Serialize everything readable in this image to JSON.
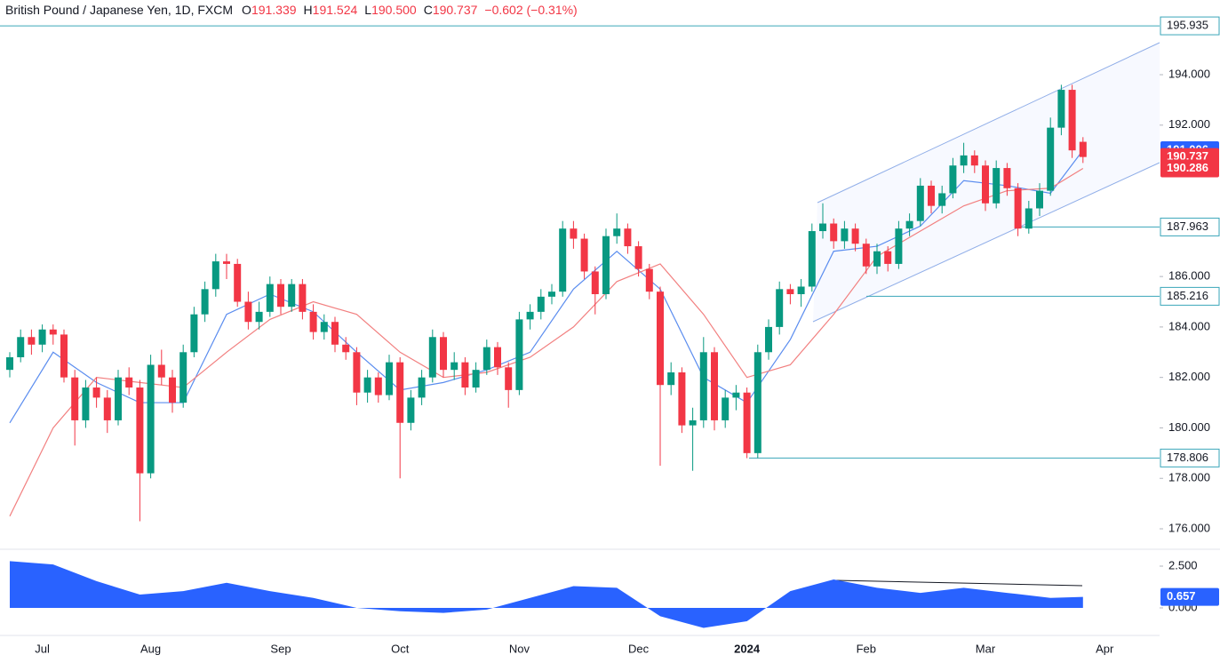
{
  "header": {
    "symbol": "British Pound / Japanese Yen, 1D, FXCM",
    "fields": [
      {
        "key": "O",
        "value": "191.339"
      },
      {
        "key": "H",
        "value": "191.524"
      },
      {
        "key": "L",
        "value": "190.500"
      },
      {
        "key": "C",
        "value": "190.737"
      }
    ],
    "change": "−0.602 (−0.31%)"
  },
  "chart_data": {
    "type": "candlestick",
    "up_color": "#089981",
    "down_color": "#f23645",
    "categories": [
      null,
      null,
      null,
      "Jul",
      null,
      null,
      null,
      null,
      null,
      null,
      null,
      null,
      null,
      "Aug",
      null,
      null,
      null,
      null,
      null,
      null,
      null,
      null,
      null,
      null,
      null,
      "Sep",
      null,
      null,
      null,
      null,
      null,
      null,
      null,
      null,
      null,
      null,
      "Oct",
      null,
      null,
      null,
      null,
      null,
      null,
      null,
      null,
      null,
      null,
      "Nov",
      null,
      null,
      null,
      null,
      null,
      null,
      null,
      null,
      null,
      null,
      "Dec",
      null,
      null,
      null,
      null,
      null,
      null,
      null,
      null,
      null,
      "2024",
      null,
      null,
      null,
      null,
      null,
      null,
      null,
      null,
      null,
      null,
      "Feb",
      null,
      null,
      null,
      null,
      null,
      null,
      null,
      null,
      null,
      null,
      "Mar",
      null,
      null,
      null,
      null,
      null,
      null,
      null,
      null,
      null,
      null,
      "Apr"
    ],
    "ohlc": [
      [
        182.3,
        183.0,
        182.0,
        182.8
      ],
      [
        182.8,
        183.9,
        182.6,
        183.6
      ],
      [
        183.6,
        183.9,
        182.9,
        183.3
      ],
      [
        183.3,
        184.1,
        183.0,
        183.9
      ],
      [
        183.9,
        184.1,
        183.3,
        183.7
      ],
      [
        183.7,
        183.9,
        181.8,
        182.0
      ],
      [
        182.0,
        182.3,
        179.3,
        180.3
      ],
      [
        180.3,
        181.9,
        180.0,
        181.6
      ],
      [
        181.6,
        182.0,
        180.8,
        181.2
      ],
      [
        181.2,
        181.5,
        179.8,
        180.3
      ],
      [
        180.3,
        182.3,
        180.1,
        182.0
      ],
      [
        182.0,
        182.4,
        181.3,
        181.6
      ],
      [
        181.6,
        181.9,
        176.3,
        178.2
      ],
      [
        178.2,
        182.9,
        178.0,
        182.5
      ],
      [
        182.5,
        183.1,
        181.7,
        182.0
      ],
      [
        182.0,
        182.3,
        180.6,
        181.0
      ],
      [
        181.0,
        183.3,
        180.8,
        183.0
      ],
      [
        183.0,
        184.8,
        182.8,
        184.5
      ],
      [
        184.5,
        185.8,
        184.2,
        185.5
      ],
      [
        185.5,
        186.9,
        185.2,
        186.6
      ],
      [
        186.6,
        186.9,
        185.9,
        186.5
      ],
      [
        186.5,
        186.7,
        184.8,
        185.0
      ],
      [
        185.0,
        185.4,
        183.9,
        184.2
      ],
      [
        184.2,
        185.0,
        183.9,
        184.6
      ],
      [
        184.6,
        186.0,
        184.4,
        185.7
      ],
      [
        185.7,
        185.9,
        184.5,
        184.8
      ],
      [
        184.8,
        185.9,
        184.6,
        185.7
      ],
      [
        185.7,
        185.9,
        184.3,
        184.6
      ],
      [
        184.6,
        184.9,
        183.5,
        183.8
      ],
      [
        183.8,
        184.5,
        183.5,
        184.2
      ],
      [
        184.2,
        184.4,
        183.0,
        183.3
      ],
      [
        183.3,
        183.6,
        182.7,
        183.0
      ],
      [
        183.0,
        183.2,
        180.9,
        181.4
      ],
      [
        181.4,
        182.3,
        181.0,
        182.0
      ],
      [
        182.0,
        182.2,
        181.0,
        181.3
      ],
      [
        181.3,
        182.9,
        181.1,
        182.6
      ],
      [
        182.6,
        182.8,
        178.0,
        180.2
      ],
      [
        180.2,
        181.5,
        179.9,
        181.2
      ],
      [
        181.2,
        182.3,
        180.9,
        182.0
      ],
      [
        182.0,
        183.9,
        181.8,
        183.6
      ],
      [
        183.6,
        183.8,
        182.0,
        182.3
      ],
      [
        182.3,
        183.0,
        181.9,
        182.6
      ],
      [
        182.6,
        182.8,
        181.3,
        181.6
      ],
      [
        181.6,
        182.6,
        181.4,
        182.3
      ],
      [
        182.3,
        183.5,
        182.1,
        183.2
      ],
      [
        183.2,
        183.4,
        182.1,
        182.4
      ],
      [
        182.4,
        182.6,
        180.8,
        181.5
      ],
      [
        181.5,
        184.6,
        181.3,
        184.3
      ],
      [
        184.3,
        184.9,
        183.9,
        184.6
      ],
      [
        184.6,
        185.5,
        184.3,
        185.2
      ],
      [
        185.2,
        185.7,
        184.9,
        185.4
      ],
      [
        185.4,
        188.2,
        185.2,
        187.9
      ],
      [
        187.9,
        188.2,
        187.1,
        187.5
      ],
      [
        187.5,
        187.7,
        185.9,
        186.2
      ],
      [
        186.2,
        186.4,
        184.5,
        185.3
      ],
      [
        185.3,
        187.9,
        185.1,
        187.6
      ],
      [
        187.6,
        188.5,
        187.3,
        187.9
      ],
      [
        187.9,
        188.1,
        186.9,
        187.2
      ],
      [
        187.2,
        187.4,
        186.0,
        186.3
      ],
      [
        186.3,
        186.5,
        185.1,
        185.4
      ],
      [
        185.4,
        185.6,
        178.5,
        181.7
      ],
      [
        181.7,
        182.6,
        181.3,
        182.2
      ],
      [
        182.2,
        182.4,
        179.8,
        180.1
      ],
      [
        180.1,
        180.8,
        178.3,
        180.3
      ],
      [
        180.3,
        183.6,
        180.0,
        183.0
      ],
      [
        183.0,
        183.2,
        179.9,
        180.3
      ],
      [
        180.3,
        181.5,
        180.0,
        181.2
      ],
      [
        181.2,
        181.7,
        180.7,
        181.4
      ],
      [
        181.4,
        181.6,
        178.8,
        179.0
      ],
      [
        179.0,
        183.3,
        178.8,
        183.0
      ],
      [
        183.0,
        184.3,
        182.7,
        184.0
      ],
      [
        184.0,
        185.8,
        183.7,
        185.5
      ],
      [
        185.5,
        185.7,
        184.9,
        185.3
      ],
      [
        185.3,
        185.9,
        184.8,
        185.6
      ],
      [
        185.6,
        188.1,
        185.4,
        187.8
      ],
      [
        187.8,
        188.9,
        187.5,
        188.1
      ],
      [
        188.1,
        188.3,
        187.1,
        187.4
      ],
      [
        187.4,
        188.2,
        187.1,
        187.9
      ],
      [
        187.9,
        188.1,
        187.0,
        187.3
      ],
      [
        187.3,
        187.5,
        186.1,
        186.4
      ],
      [
        186.4,
        187.3,
        186.1,
        187.0
      ],
      [
        187.0,
        187.2,
        186.2,
        186.5
      ],
      [
        186.5,
        188.2,
        186.3,
        187.9
      ],
      [
        187.9,
        188.5,
        187.6,
        188.2
      ],
      [
        188.2,
        189.9,
        188.0,
        189.6
      ],
      [
        189.6,
        189.8,
        188.5,
        188.8
      ],
      [
        188.8,
        189.6,
        188.5,
        189.3
      ],
      [
        189.3,
        190.7,
        189.1,
        190.4
      ],
      [
        190.4,
        191.3,
        190.1,
        190.8
      ],
      [
        190.8,
        191.0,
        190.1,
        190.4
      ],
      [
        190.4,
        190.6,
        188.6,
        188.9
      ],
      [
        188.9,
        190.6,
        188.7,
        190.3
      ],
      [
        190.3,
        190.5,
        189.2,
        189.5
      ],
      [
        189.5,
        189.7,
        187.6,
        187.9
      ],
      [
        187.9,
        189.0,
        187.7,
        188.7
      ],
      [
        188.7,
        189.7,
        188.4,
        189.4
      ],
      [
        189.4,
        192.3,
        189.2,
        191.9
      ],
      [
        191.9,
        193.6,
        191.6,
        193.4
      ],
      [
        193.4,
        193.6,
        190.7,
        191.0
      ],
      [
        191.339,
        191.524,
        190.5,
        190.737
      ],
      null,
      null
    ],
    "series": [
      {
        "color": "#5b8def",
        "x": [
          0,
          4,
          8,
          12,
          16,
          20,
          24,
          28,
          32,
          36,
          40,
          44,
          48,
          52,
          56,
          60,
          64,
          68,
          72,
          76,
          80,
          84,
          88,
          92,
          96,
          99
        ],
        "values": [
          180.2,
          183.0,
          181.8,
          181.0,
          181.0,
          184.5,
          185.3,
          184.6,
          183.0,
          181.5,
          181.8,
          182.3,
          183.0,
          185.5,
          187.0,
          185.5,
          182.0,
          181.0,
          183.5,
          187.0,
          187.2,
          188.0,
          189.8,
          189.6,
          189.3,
          191.006
        ]
      },
      {
        "color": "#f28080",
        "x": [
          0,
          4,
          8,
          12,
          16,
          20,
          24,
          28,
          32,
          36,
          40,
          44,
          48,
          52,
          56,
          60,
          64,
          68,
          72,
          76,
          80,
          84,
          88,
          92,
          96,
          99
        ],
        "values": [
          176.5,
          180.0,
          182.0,
          181.8,
          181.6,
          183.0,
          184.3,
          185.0,
          184.5,
          183.0,
          182.0,
          182.2,
          182.8,
          184.0,
          185.8,
          186.5,
          184.5,
          182.0,
          182.5,
          184.5,
          186.8,
          187.8,
          188.8,
          189.4,
          189.5,
          190.286
        ]
      }
    ],
    "ylim": [
      175.19,
      196.96
    ],
    "yticks": [
      {
        "value": 194,
        "label": "194.000"
      },
      {
        "value": 192,
        "label": "192.000"
      },
      {
        "value": 186,
        "label": "186.000"
      },
      {
        "value": 184,
        "label": "184.000"
      },
      {
        "value": 182,
        "label": "182.000"
      },
      {
        "value": 180,
        "label": "180.000"
      },
      {
        "value": 178,
        "label": "178.000"
      },
      {
        "value": 176,
        "label": "176.000"
      }
    ],
    "levels": [
      195.935,
      187.963,
      185.216,
      178.806
    ],
    "level_color": "#3aa6b9",
    "indicator": {
      "color": "#2962ff",
      "x": [
        0,
        4,
        8,
        12,
        16,
        20,
        24,
        28,
        32,
        36,
        40,
        44,
        48,
        52,
        56,
        60,
        64,
        68,
        72,
        76,
        80,
        84,
        88,
        92,
        96,
        99
      ],
      "values": [
        2.8,
        2.6,
        1.6,
        0.8,
        1.0,
        1.5,
        1.0,
        0.6,
        0.0,
        -0.2,
        -0.3,
        -0.1,
        0.6,
        1.3,
        1.2,
        -0.5,
        -1.2,
        -0.8,
        1.0,
        1.7,
        1.2,
        0.9,
        1.2,
        0.9,
        0.6,
        0.657
      ],
      "ylim": [
        -1.65,
        3.51
      ],
      "yticks": [
        {
          "value": 2.5,
          "label": "2.500"
        },
        {
          "value": 0,
          "label": "0.000"
        }
      ]
    }
  }
}
